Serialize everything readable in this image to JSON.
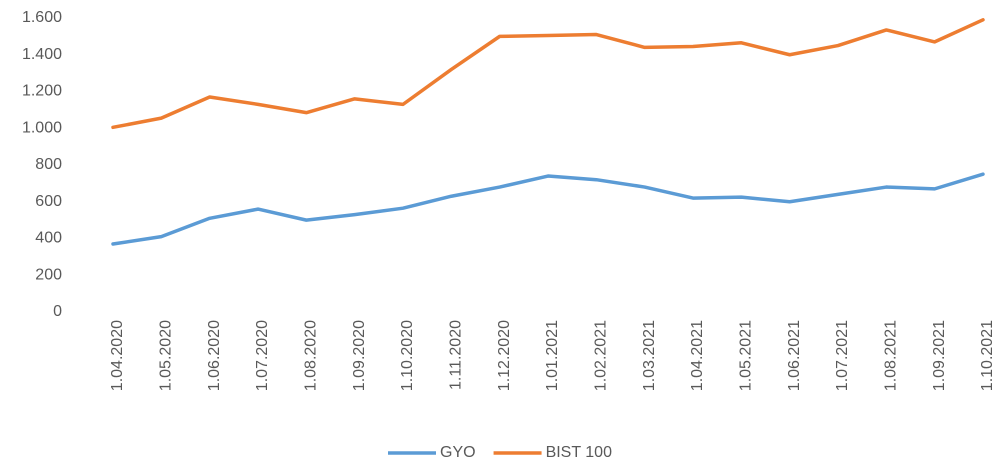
{
  "chart_data": {
    "type": "line",
    "categories": [
      "1.04.2020",
      "1.05.2020",
      "1.06.2020",
      "1.07.2020",
      "1.08.2020",
      "1.09.2020",
      "1.10.2020",
      "1.11.2020",
      "1.12.2020",
      "1.01.2021",
      "1.02.2021",
      "1.03.2021",
      "1.04.2021",
      "1.05.2021",
      "1.06.2021",
      "1.07.2021",
      "1.08.2021",
      "1.09.2021",
      "1.10.2021"
    ],
    "series": [
      {
        "name": "GYO",
        "color": "#5b9bd5",
        "values": [
          370,
          410,
          510,
          560,
          500,
          530,
          565,
          630,
          680,
          740,
          720,
          680,
          620,
          625,
          600,
          640,
          680,
          670,
          750
        ]
      },
      {
        "name": "BIST 100",
        "color": "#ed7d31",
        "values": [
          1005,
          1055,
          1170,
          1130,
          1085,
          1160,
          1130,
          1320,
          1500,
          1505,
          1510,
          1440,
          1445,
          1465,
          1400,
          1450,
          1535,
          1470,
          1590
        ]
      }
    ],
    "ylim": [
      0,
      1600
    ],
    "yticks": [
      0,
      200,
      400,
      600,
      800,
      {
        "value": 1000,
        "label": "1.000"
      },
      {
        "value": 1200,
        "label": "1.200"
      },
      {
        "value": 1400,
        "label": "1.400"
      },
      {
        "value": 1600,
        "label": "1.600"
      }
    ],
    "grid": false,
    "legend": "bottom"
  }
}
